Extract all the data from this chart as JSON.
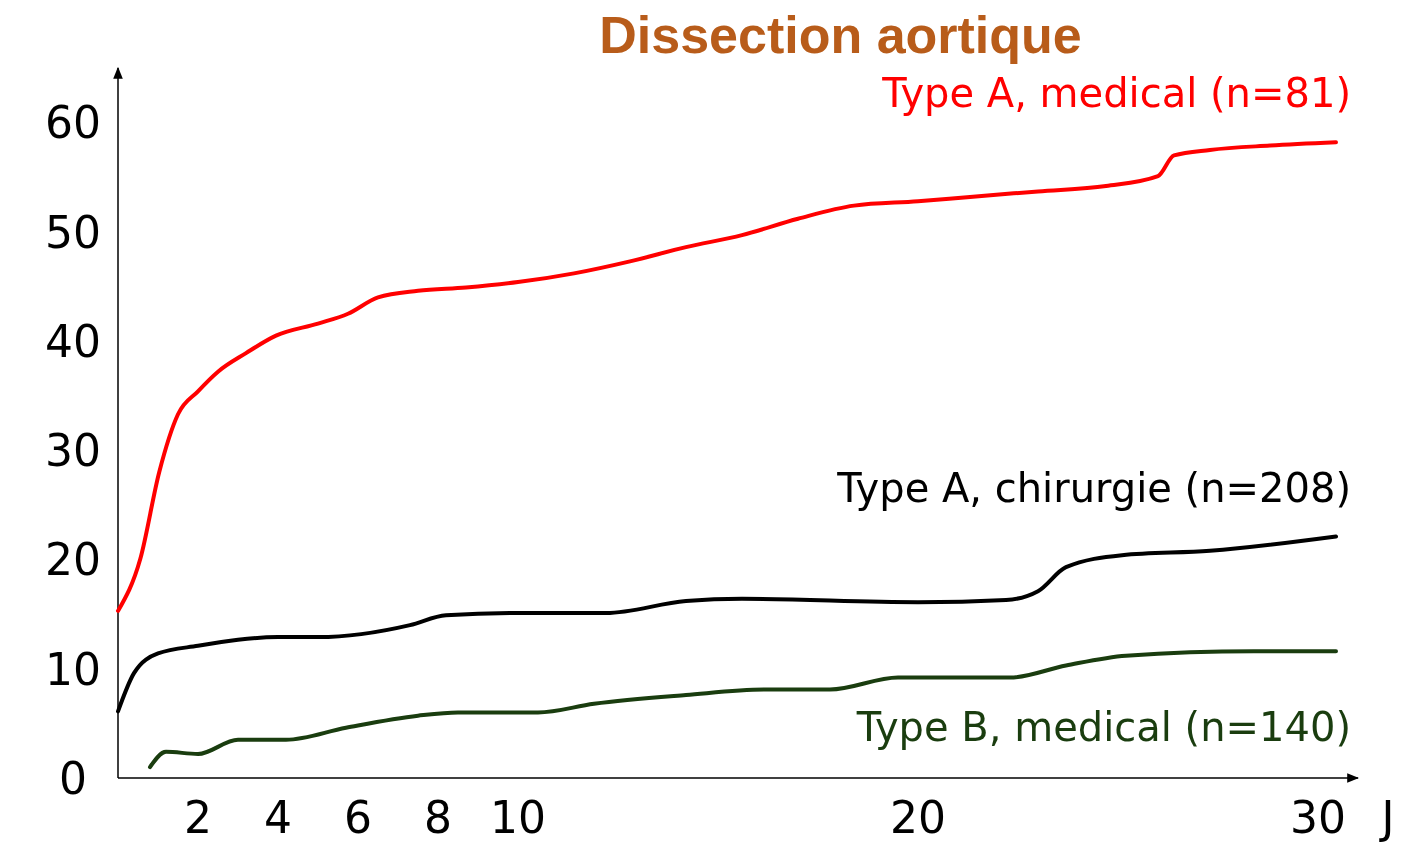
{
  "chart_data": {
    "type": "line",
    "title": "Dissection aortique",
    "xlabel": "J",
    "xlim": [
      0,
      31
    ],
    "xticks": [
      2,
      4,
      6,
      8,
      10,
      20,
      30
    ],
    "ylim": [
      0,
      65
    ],
    "yticks": [
      0,
      10,
      20,
      30,
      40,
      50,
      60
    ],
    "grid": false,
    "marker": "none",
    "line_style": "solid",
    "series": [
      {
        "name": "Type A, medical (n=81)",
        "color": "#ff0000",
        "x": [
          0,
          0.56,
          1.03,
          1.5,
          2,
          2.5,
          3.2,
          3.95,
          5,
          5.75,
          6.5,
          7.5,
          8.7,
          10,
          11.4,
          12.8,
          14.2,
          15.6,
          17,
          18.4,
          20,
          21.3,
          23,
          24.7,
          26,
          26.4,
          27.3,
          28.8,
          30.45
        ],
        "values": [
          15.3,
          20.1,
          28,
          33.3,
          35.4,
          37.2,
          38.9,
          40.5,
          41.6,
          42.5,
          44,
          44.6,
          44.9,
          45.4,
          46.2,
          47.3,
          48.6,
          49.7,
          51.2,
          52.4,
          52.8,
          53.2,
          53.7,
          54.2,
          55.1,
          57,
          57.5,
          57.9,
          58.2
        ]
      },
      {
        "name": "Type A, chirurgie (n=208)",
        "color": "#000000",
        "x": [
          0,
          0.4,
          1,
          2,
          4,
          5,
          7.3,
          8.2,
          10,
          12.2,
          14.2,
          15.6,
          20,
          22.2,
          23,
          23.7,
          25.1,
          27.3,
          30.45
        ],
        "values": [
          6.1,
          9.6,
          11.4,
          12.1,
          12.9,
          12.9,
          14,
          14.9,
          15.1,
          15.1,
          16.2,
          16.4,
          16.1,
          16.3,
          17.1,
          19.3,
          20.4,
          20.8,
          22.1
        ]
      },
      {
        "name": "Type B, medical (n=140)",
        "color": "#1a3d0f",
        "x": [
          0.8,
          1.2,
          2,
          3,
          4.2,
          5.7,
          7.5,
          8.5,
          10.5,
          11.9,
          14.2,
          16.2,
          17.8,
          19.5,
          22.3,
          23.7,
          25.2,
          28.4,
          30.45
        ],
        "values": [
          1,
          2.4,
          2.2,
          3.5,
          3.5,
          4.6,
          5.7,
          6,
          6,
          6.8,
          7.6,
          8.1,
          8.1,
          9.2,
          9.2,
          10.3,
          11.2,
          11.6,
          11.6
        ]
      }
    ]
  }
}
